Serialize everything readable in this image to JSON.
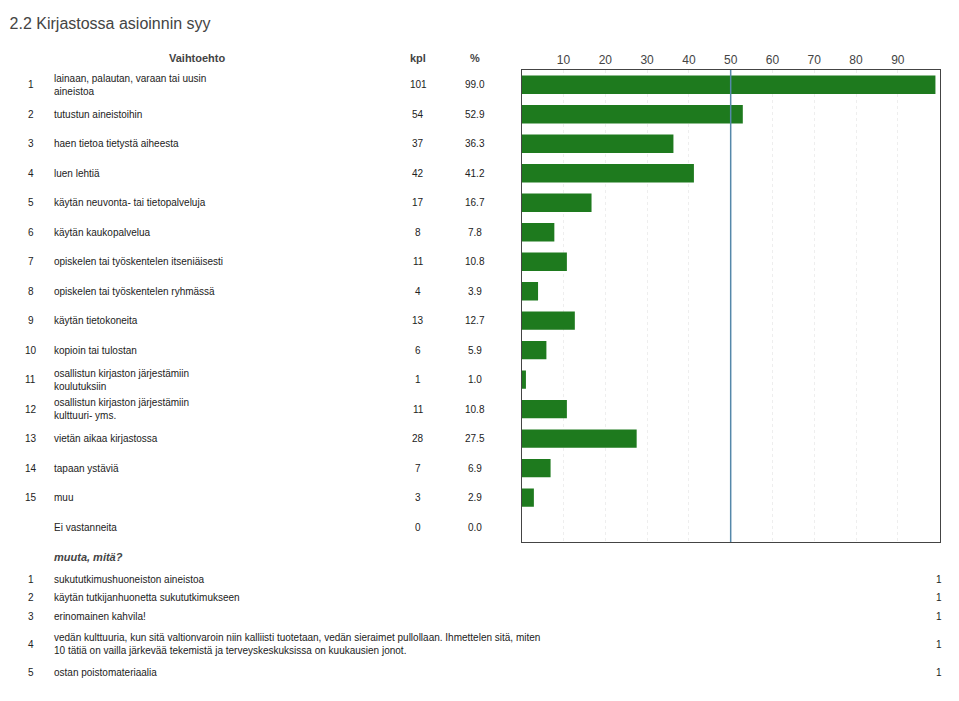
{
  "chart_data": {
    "type": "bar",
    "orientation": "horizontal",
    "title": "2.2 Kirjastossa asioinnin syy",
    "column_titles": [
      "Vaihtoehto",
      "kpl",
      "%"
    ],
    "row_numbers": [
      "1",
      "2",
      "3",
      "4",
      "5",
      "6",
      "7",
      "8",
      "9",
      "10",
      "11",
      "12",
      "13",
      "14",
      "15",
      null
    ],
    "categories": [
      "lainaan, palautan, varaan tai uusin\naineistoa",
      "tutustun aineistoihin",
      "haen tietoa tietystä aiheesta",
      "luen lehtiä",
      "käytän neuvonta- tai tietopalveluja",
      "käytän kaukopalvelua",
      "opiskelen tai työskentelen itseniäisesti",
      "opiskelen tai työskentelen ryhmässä",
      "käytän tietokoneita",
      "kopioin tai tulostan",
      "osallistun kirjaston järjestämiin\nkoulutuksiin",
      "osallistun kirjaston järjestämiin\nkulttuuri- yms.",
      "vietän aikaa kirjastossa",
      "tapaan ystäviä",
      "muu",
      "Ei vastanneita"
    ],
    "counts": [
      101,
      54,
      37,
      42,
      17,
      8,
      11,
      4,
      13,
      6,
      1,
      11,
      28,
      7,
      3,
      0
    ],
    "values": [
      99.0,
      52.9,
      36.3,
      41.2,
      16.7,
      7.8,
      10.8,
      3.9,
      12.7,
      5.9,
      1.0,
      10.8,
      27.5,
      6.9,
      2.9,
      0.0
    ],
    "value_labels": [
      "99.0",
      "52.9",
      "36.3",
      "41.2",
      "16.7",
      "7.8",
      "10.8",
      "3.9",
      "12.7",
      "5.9",
      "1.0",
      "10.8",
      "27.5",
      "6.9",
      "2.9",
      "0.0"
    ],
    "color": "#1e7a1e",
    "xlim": [
      0,
      100
    ],
    "xticks": [
      10,
      20,
      30,
      40,
      50,
      60,
      70,
      80,
      90
    ],
    "grid": true,
    "reference_line": {
      "value": 50,
      "color": "#5588aa"
    },
    "other_answers": {
      "title": "muuta, mitä?",
      "rows": [
        {
          "number": "1",
          "text": "sukututkimushuoneiston aineistoa",
          "count": 1
        },
        {
          "number": "2",
          "text": "käytän tutkijanhuonetta sukututkimukseen",
          "count": 1
        },
        {
          "number": "3",
          "text": "erinomainen kahvila!",
          "count": 1
        },
        {
          "number": "4",
          "text": "vedän kulttuuria, kun sitä valtionvaroin niin kalliisti tuotetaan, vedän sieraimet pullollaan. Ihmettelen sitä, miten\n10 tätiä on vailla järkevää tekemistä ja terveyskeskuksissa on kuukausien jonot.",
          "count": 1
        },
        {
          "number": "5",
          "text": "ostan poistomateriaalia",
          "count": 1
        }
      ]
    }
  }
}
